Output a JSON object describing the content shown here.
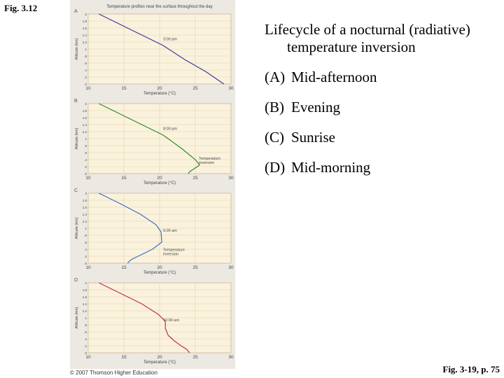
{
  "page": {
    "fig_label": "Fig. 3.12",
    "fig_reference": "Fig. 3-19, p. 75",
    "copyright": "© 2007 Thomson Higher Education",
    "caption_title": "Lifecycle of a nocturnal (radiative) temperature inversion",
    "items": [
      {
        "letter": "(A)",
        "text": "Mid-afternoon"
      },
      {
        "letter": "(B)",
        "text": "Evening"
      },
      {
        "letter": "(C)",
        "text": "Sunrise"
      },
      {
        "letter": "(D)",
        "text": "Mid-morning"
      }
    ]
  },
  "chart_data": [
    {
      "type": "line",
      "panel": "A",
      "title": "Temperature profiles near the surface throughout the day",
      "xlabel": "Temperature (°C)",
      "ylabel": "Altitude (km)",
      "xlim": [
        10,
        30
      ],
      "ylim": [
        0,
        2
      ],
      "x_ticks": [
        10,
        15,
        20,
        25,
        30
      ],
      "y_ticks": [
        0,
        0.2,
        0.4,
        0.6,
        0.8,
        1.0,
        1.2,
        1.4,
        1.6,
        1.8,
        2.0
      ],
      "y_tick_labels": [
        ".0",
        ".2",
        ".4",
        ".6",
        ".8",
        "1",
        "1.2",
        "1.4",
        "1.6",
        "1.8",
        "2"
      ],
      "series": [
        {
          "color": "#3a3aa0",
          "points": [
            [
              11.5,
              2.0
            ],
            [
              14.5,
              1.7
            ],
            [
              17.5,
              1.4
            ],
            [
              20.5,
              1.1
            ],
            [
              23.5,
              0.7
            ],
            [
              26.5,
              0.35
            ],
            [
              29.0,
              0.0
            ]
          ]
        }
      ],
      "annotations": [
        {
          "text": "3:00 pm",
          "x": 20.5,
          "y": 1.25
        }
      ],
      "grid": true
    },
    {
      "type": "line",
      "panel": "B",
      "xlabel": "Temperature (°C)",
      "ylabel": "Altitude (km)",
      "xlim": [
        10,
        30
      ],
      "ylim": [
        0,
        2
      ],
      "x_ticks": [
        10,
        15,
        20,
        25,
        30
      ],
      "y_ticks": [
        0,
        0.2,
        0.4,
        0.6,
        0.8,
        1.0,
        1.2,
        1.4,
        1.6,
        1.8,
        2.0
      ],
      "y_tick_labels": [
        ".0",
        ".2",
        ".4",
        ".6",
        ".8",
        "1",
        "1.2",
        "1.4",
        "1.6",
        "1.8",
        "2"
      ],
      "series": [
        {
          "color": "#2e8b2e",
          "points": [
            [
              11.5,
              2.0
            ],
            [
              14.5,
              1.7
            ],
            [
              17.5,
              1.4
            ],
            [
              20.5,
              1.1
            ],
            [
              23.2,
              0.7
            ],
            [
              25.0,
              0.4
            ],
            [
              25.6,
              0.25
            ],
            [
              25.3,
              0.2
            ],
            [
              24.7,
              0.12
            ],
            [
              24.2,
              0.05
            ],
            [
              24.0,
              0.0
            ]
          ]
        }
      ],
      "annotations": [
        {
          "text": "8:00 pm",
          "x": 20.5,
          "y": 1.25
        },
        {
          "text": "Temperature inversion",
          "x": 25.5,
          "y": 0.4
        }
      ],
      "grid": true
    },
    {
      "type": "line",
      "panel": "C",
      "xlabel": "Temperature (°C)",
      "ylabel": "Altitude (km)",
      "xlim": [
        10,
        30
      ],
      "ylim": [
        0,
        2
      ],
      "x_ticks": [
        10,
        15,
        20,
        25,
        30
      ],
      "y_ticks": [
        0,
        0.2,
        0.4,
        0.6,
        0.8,
        1.0,
        1.2,
        1.4,
        1.6,
        1.8,
        2.0
      ],
      "y_tick_labels": [
        ".0",
        ".2",
        ".4",
        ".6",
        ".8",
        "1",
        "1.2",
        "1.4",
        "1.6",
        "1.8",
        "2"
      ],
      "series": [
        {
          "color": "#3a6fc8",
          "points": [
            [
              11.5,
              2.0
            ],
            [
              14.5,
              1.7
            ],
            [
              17.3,
              1.4
            ],
            [
              19.5,
              1.1
            ],
            [
              20.2,
              0.9
            ],
            [
              20.3,
              0.6
            ],
            [
              19.0,
              0.4
            ],
            [
              17.0,
              0.2
            ],
            [
              16.0,
              0.1
            ],
            [
              15.5,
              0.0
            ]
          ]
        }
      ],
      "annotations": [
        {
          "text": "6:00 am",
          "x": 20.5,
          "y": 0.9
        },
        {
          "text": "Temperature inversion",
          "x": 20.5,
          "y": 0.35
        }
      ],
      "grid": true
    },
    {
      "type": "line",
      "panel": "D",
      "xlabel": "Temperature (°C)",
      "ylabel": "Altitude (km)",
      "xlim": [
        10,
        30
      ],
      "ylim": [
        0,
        2
      ],
      "x_ticks": [
        10,
        15,
        20,
        25,
        30
      ],
      "y_ticks": [
        0,
        0.2,
        0.4,
        0.6,
        0.8,
        1.0,
        1.2,
        1.4,
        1.6,
        1.8,
        2.0
      ],
      "y_tick_labels": [
        ".0",
        ".2",
        ".4",
        ".6",
        ".8",
        "1",
        "1.2",
        "1.4",
        "1.6",
        "1.8",
        "2"
      ],
      "series": [
        {
          "color": "#c0304a",
          "points": [
            [
              11.5,
              2.0
            ],
            [
              14.5,
              1.7
            ],
            [
              17.5,
              1.4
            ],
            [
              19.8,
              1.1
            ],
            [
              20.8,
              0.9
            ],
            [
              20.8,
              0.7
            ],
            [
              21.2,
              0.5
            ],
            [
              22.0,
              0.35
            ],
            [
              23.0,
              0.2
            ],
            [
              23.8,
              0.1
            ],
            [
              24.2,
              0.0
            ]
          ]
        }
      ],
      "annotations": [
        {
          "text": "10:00 am",
          "x": 20.5,
          "y": 0.9
        }
      ],
      "grid": true
    }
  ]
}
